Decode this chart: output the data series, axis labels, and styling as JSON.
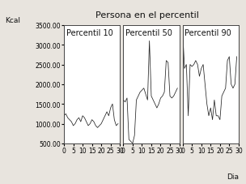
{
  "title": "Persona en el percentil",
  "ylabel": "Kcal",
  "xlabel": "Dia",
  "ylim": [
    500,
    3500
  ],
  "yticks": [
    500,
    1000,
    1500,
    2000,
    2500,
    3000,
    3500
  ],
  "ytick_labels": [
    "500.00",
    "1000.00",
    "1500.00",
    "2000.00",
    "2500.00",
    "3000.00",
    "3500.00"
  ],
  "xticks": [
    0,
    5,
    10,
    15,
    20,
    25,
    30
  ],
  "xtick_labels": [
    "0",
    "5",
    "10",
    "15",
    "20",
    "25",
    "30"
  ],
  "panels": [
    {
      "label": "Percentil 10",
      "data": [
        1200,
        1250,
        1150,
        1100,
        1050,
        950,
        1000,
        1100,
        1150,
        1050,
        1200,
        1150,
        1050,
        950,
        1000,
        1100,
        1050,
        950,
        900,
        950,
        1000,
        1100,
        1200,
        1300,
        1200,
        1400,
        1500,
        1100,
        950,
        1000
      ]
    },
    {
      "label": "Percentil 50",
      "data": [
        1600,
        1550,
        1650,
        600,
        550,
        500,
        700,
        1600,
        1700,
        1800,
        1850,
        1900,
        1750,
        1600,
        3100,
        1700,
        1600,
        1500,
        1400,
        1500,
        1650,
        1700,
        1800,
        2600,
        2550,
        1700,
        1650,
        1700,
        1800,
        1900
      ]
    },
    {
      "label": "Percentil 90",
      "data": [
        3350,
        2400,
        2500,
        1200,
        2500,
        2450,
        2500,
        2600,
        2500,
        2200,
        2400,
        2500,
        2000,
        1500,
        1200,
        1400,
        1100,
        1600,
        1200,
        1200,
        1100,
        1700,
        1800,
        1900,
        2600,
        2700,
        2000,
        1900,
        2000,
        2700
      ]
    }
  ],
  "line_color": "#222222",
  "bg_color": "#ffffff",
  "panel_bg": "#ffffff",
  "outer_bg": "#e8e4de",
  "border_color": "#444444",
  "title_fontsize": 8,
  "label_fontsize": 6.5,
  "tick_fontsize": 5.5,
  "panel_label_fontsize": 7
}
